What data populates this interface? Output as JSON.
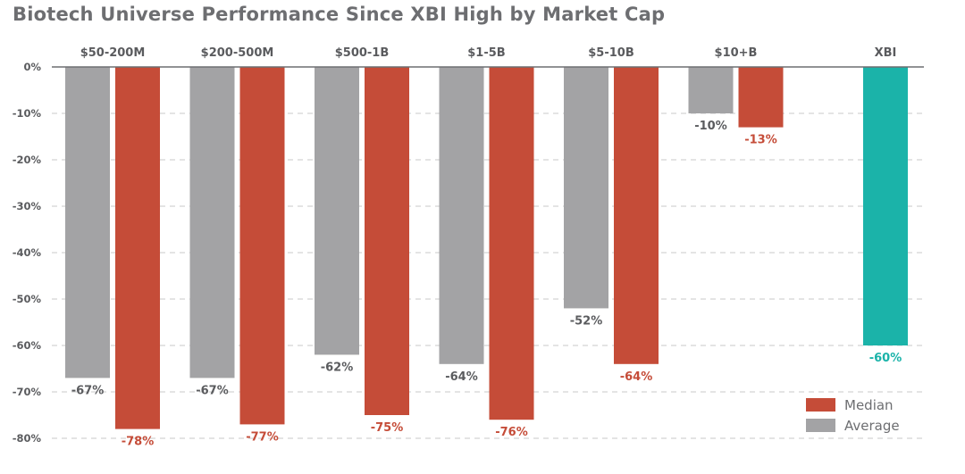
{
  "chart_data": {
    "type": "bar",
    "title": "Biotech Universe Performance Since XBI High by Market Cap",
    "categories": [
      "$50-200M",
      "$200-500M",
      "$500-1B",
      "$1-5B",
      "$5-10B",
      "$10+B"
    ],
    "series": [
      {
        "name": "Average",
        "color": "#a3a3a5",
        "values": [
          -67,
          -67,
          -62,
          -64,
          -52,
          -10
        ],
        "labels": [
          "-67%",
          "-67%",
          "-62%",
          "-64%",
          "-52%",
          "-10%"
        ]
      },
      {
        "name": "Median",
        "color": "#c54c38",
        "values": [
          -78,
          -77,
          -75,
          -76,
          -64,
          -13
        ],
        "labels": [
          "-78%",
          "-77%",
          "-75%",
          "-76%",
          "-64%",
          "-13%"
        ]
      }
    ],
    "benchmark": {
      "category": "XBI",
      "value": -60,
      "label": "-60%",
      "color": "#1bb3a9"
    },
    "y_ticks": [
      "0%",
      "-10%",
      "-20%",
      "-30%",
      "-40%",
      "-50%",
      "-60%",
      "-70%",
      "-80%"
    ],
    "y_tick_values": [
      0,
      -10,
      -20,
      -30,
      -40,
      -50,
      -60,
      -70,
      -80
    ],
    "ylim": [
      -80,
      0
    ],
    "grid": true,
    "legend_position": "bottom-right",
    "legend_order": [
      "Median",
      "Average"
    ],
    "label_color": "#5a5b5e",
    "axis_color": "#6d6e71",
    "grid_color": "#c8c8c8"
  }
}
